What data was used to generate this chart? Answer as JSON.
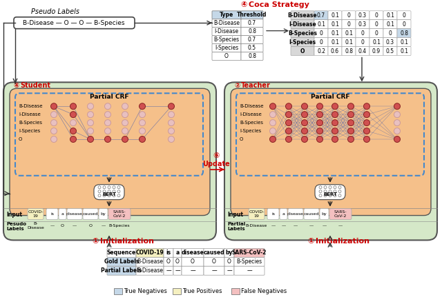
{
  "bg_color": "#ffffff",
  "light_green": "#d5e8c8",
  "orange_bg": "#f5c08a",
  "light_blue_cell": "#c5d8e8",
  "light_yellow_cell": "#f5f0c0",
  "light_pink_cell": "#f4c0c0",
  "node_red": "#d05050",
  "node_light": "#e8c0c0",
  "conn_color": "#5566aa",
  "coca_table": {
    "headers": [
      "Type",
      "Threshold"
    ],
    "rows": [
      [
        "B-Disease",
        "0.7"
      ],
      [
        "I-Disease",
        "0.8"
      ],
      [
        "B-Species",
        "0.7"
      ],
      [
        "I-Species",
        "0.5"
      ],
      [
        "O",
        "0.8"
      ]
    ]
  },
  "prob_table": {
    "rows": [
      [
        "B-Disease",
        "0.7",
        "0.1",
        "0",
        "0.3",
        "0",
        "0.1",
        "0"
      ],
      [
        "I-Disease",
        "0.1",
        "0.1",
        "0",
        "0.3",
        "0",
        "0.1",
        "0"
      ],
      [
        "B-Species",
        "0",
        "0.1",
        "0.1",
        "0",
        "0",
        "0",
        "0.8"
      ],
      [
        "I-Species",
        "0",
        "0.1",
        "0.1",
        "0",
        "0.1",
        "0.3",
        "0.1"
      ],
      [
        "O",
        "0.2",
        "0.6",
        "0.8",
        "0.4",
        "0.9",
        "0.5",
        "0.1"
      ]
    ]
  },
  "bottom_table": {
    "headers": [
      "Sequence",
      "COVID-19",
      "is",
      "a",
      "disease",
      "caused",
      "by",
      "SARS-CoV-2"
    ],
    "gold_labels": [
      "Gold Labels",
      "B-Disease",
      "O",
      "O",
      "O",
      "O",
      "O",
      "B-Species"
    ],
    "partial_labels": [
      "Partial Labels",
      "B-Disease",
      "—",
      "—",
      "—",
      "—",
      "—",
      "—"
    ]
  },
  "labels": [
    "B-Disease",
    "I-Disease",
    "B-Species",
    "I-Species",
    "O"
  ],
  "pseudo_labels_box": "B-Disease — O — O — B-Species",
  "red_color": "#cc0000",
  "input_words": [
    "COVID-\n19",
    "is",
    "a",
    "disease",
    "caused",
    "by",
    "SARS-\nCoV-2"
  ],
  "student_pseudo": [
    "B-\nDisease",
    "—",
    "O",
    "—",
    "O",
    "—",
    "B-Species"
  ],
  "teacher_partial": [
    "B-Disease",
    "—",
    "—",
    "—",
    "—",
    "—",
    "—"
  ]
}
